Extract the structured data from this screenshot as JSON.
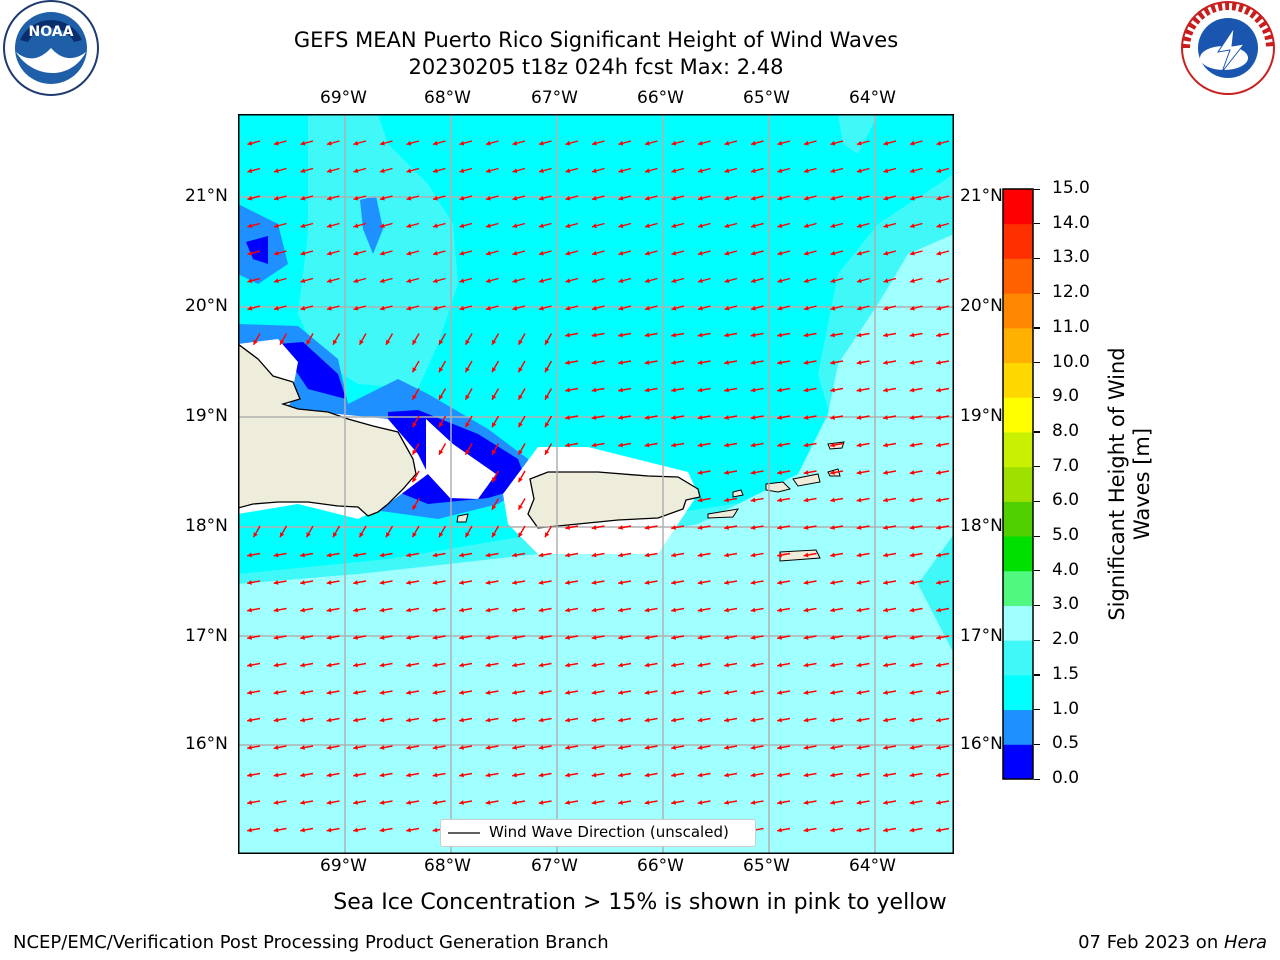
{
  "title": {
    "line1": "GEFS MEAN Puerto Rico Significant Height of Wind Waves",
    "line2": "20230205 t18z 024h fcst   Max: 2.48"
  },
  "logos": {
    "noaa_text": "NOAA",
    "noaa_ring": "NATIONAL OCEANIC AND ATMOSPHERIC ADMINISTRATION · U.S. DEPARTMENT OF COMMERCE",
    "nws_ring": "NATIONAL WEATHER SERVICE"
  },
  "map": {
    "lon_labels": [
      "69°W",
      "68°W",
      "67°W",
      "66°W",
      "65°W",
      "64°W"
    ],
    "lat_labels": [
      "21°N",
      "20°N",
      "19°N",
      "18°N",
      "17°N",
      "16°N"
    ],
    "lon_range": [
      -70.0,
      -63.25
    ],
    "lat_range": [
      15.0,
      21.75
    ],
    "grid": true,
    "wave_direction": "from east toward west-southwest",
    "legend_label": "Wind Wave Direction (unscaled)",
    "colors": {
      "land": "#eeecdb",
      "arrow": "#ff0000",
      "coast": "#000000",
      "grid": "#b0b0b0"
    }
  },
  "colorbar": {
    "label": "Significant Height of Wind Waves [m]",
    "ticks": [
      "15.0",
      "14.0",
      "13.0",
      "12.0",
      "11.0",
      "10.0",
      "9.0",
      "8.0",
      "7.0",
      "6.0",
      "5.0",
      "4.0",
      "3.0",
      "2.0",
      "1.5",
      "1.0",
      "0.5",
      "0.0"
    ],
    "levels": [
      0.0,
      0.5,
      1.0,
      1.5,
      2.0,
      3.0,
      4.0,
      5.0,
      6.0,
      7.0,
      8.0,
      9.0,
      10.0,
      11.0,
      12.0,
      13.0,
      14.0,
      15.0
    ],
    "colors": [
      "#0000ff",
      "#1e90ff",
      "#00ffff",
      "#40f8f8",
      "#a0ffff",
      "#50f880",
      "#00e000",
      "#50d000",
      "#a0e000",
      "#c8f000",
      "#ffff00",
      "#ffd800",
      "#ffb000",
      "#ff8800",
      "#ff6000",
      "#ff3000",
      "#ff0000"
    ]
  },
  "footnote": "Sea Ice Concentration > 15% is shown in pink to yellow",
  "footer": {
    "left": "NCEP/EMC/Verification Post Processing Product Generation Branch",
    "right_prefix": "07 Feb 2023 on ",
    "right_machine": "Hera"
  }
}
